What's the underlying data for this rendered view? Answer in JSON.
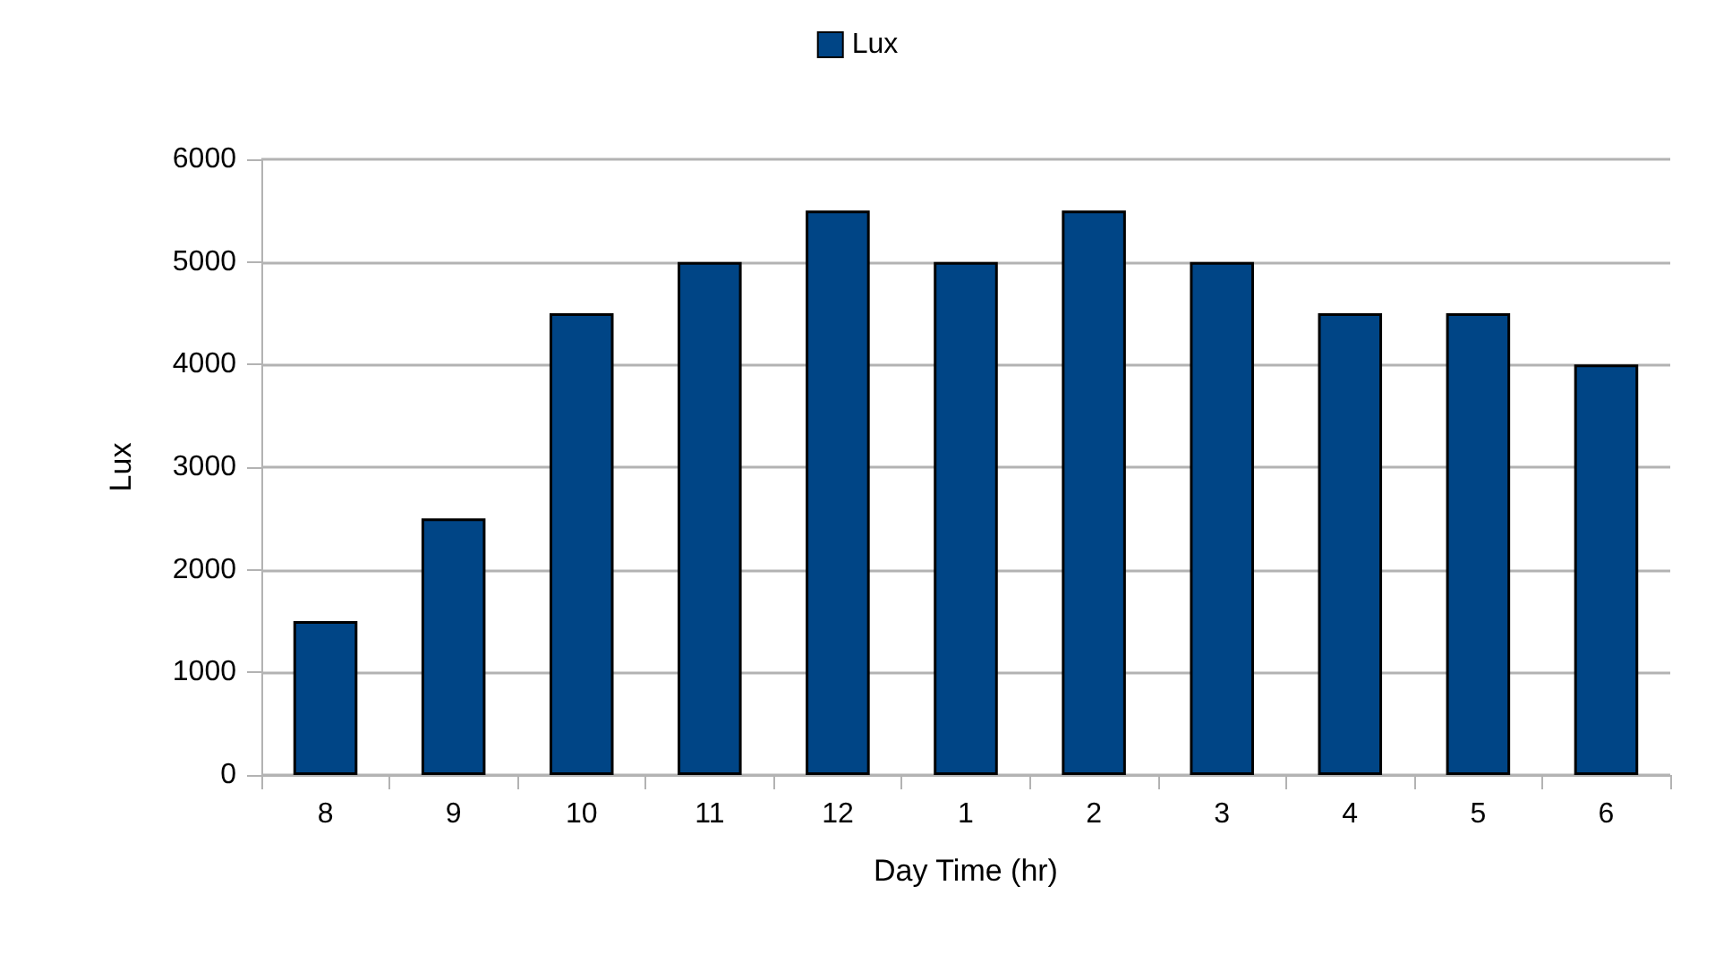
{
  "chart_data": {
    "type": "bar",
    "xlabel": "Day Time (hr)",
    "ylabel": "Lux",
    "categories": [
      "8",
      "9",
      "10",
      "11",
      "12",
      "1",
      "2",
      "3",
      "4",
      "5",
      "6"
    ],
    "series": [
      {
        "name": "Lux",
        "color": "#004586",
        "values": [
          1500,
          2500,
          4500,
          5000,
          5500,
          5000,
          5500,
          5000,
          4500,
          4500,
          4000
        ]
      }
    ],
    "ylim": [
      0,
      6000
    ],
    "yticks": [
      0,
      1000,
      2000,
      3000,
      4000,
      5000,
      6000
    ],
    "grid": "y",
    "legend": "top"
  }
}
